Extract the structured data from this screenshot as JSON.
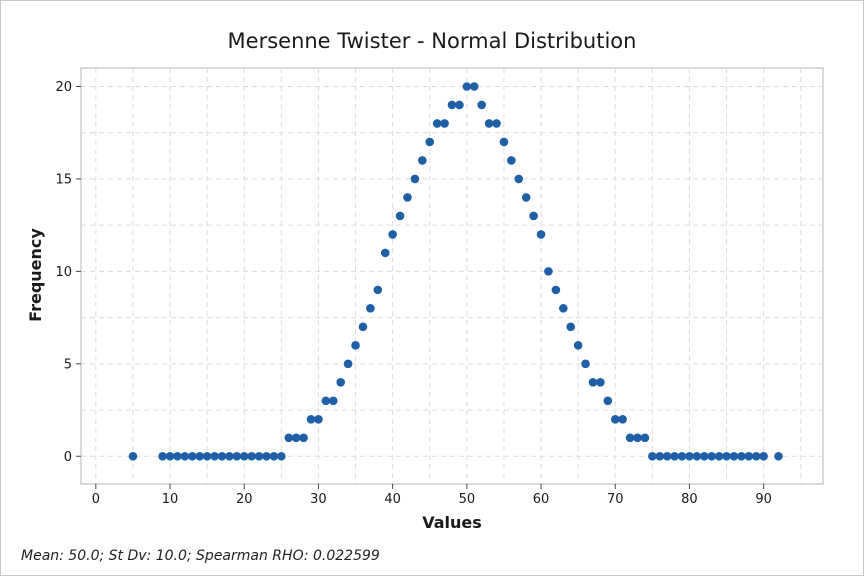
{
  "chart_data": {
    "type": "scatter",
    "title": "Mersenne Twister - Normal Distribution",
    "xlabel": "Values",
    "ylabel": "Frequency",
    "xlim": [
      -2,
      98
    ],
    "ylim": [
      -1.5,
      21
    ],
    "xticks": [
      0,
      10,
      20,
      30,
      40,
      50,
      60,
      70,
      80,
      90
    ],
    "yticks": [
      0,
      5,
      10,
      15,
      20
    ],
    "grid": true,
    "marker_color": "#1f5fa6",
    "points": [
      {
        "x": 5,
        "y": 0
      },
      {
        "x": 9,
        "y": 0
      },
      {
        "x": 10,
        "y": 0
      },
      {
        "x": 11,
        "y": 0
      },
      {
        "x": 12,
        "y": 0
      },
      {
        "x": 13,
        "y": 0
      },
      {
        "x": 14,
        "y": 0
      },
      {
        "x": 15,
        "y": 0
      },
      {
        "x": 16,
        "y": 0
      },
      {
        "x": 17,
        "y": 0
      },
      {
        "x": 18,
        "y": 0
      },
      {
        "x": 19,
        "y": 0
      },
      {
        "x": 20,
        "y": 0
      },
      {
        "x": 21,
        "y": 0
      },
      {
        "x": 22,
        "y": 0
      },
      {
        "x": 23,
        "y": 0
      },
      {
        "x": 24,
        "y": 0
      },
      {
        "x": 25,
        "y": 0
      },
      {
        "x": 26,
        "y": 1
      },
      {
        "x": 27,
        "y": 1
      },
      {
        "x": 28,
        "y": 1
      },
      {
        "x": 29,
        "y": 2
      },
      {
        "x": 30,
        "y": 2
      },
      {
        "x": 31,
        "y": 3
      },
      {
        "x": 32,
        "y": 3
      },
      {
        "x": 33,
        "y": 4
      },
      {
        "x": 34,
        "y": 5
      },
      {
        "x": 35,
        "y": 6
      },
      {
        "x": 36,
        "y": 7
      },
      {
        "x": 37,
        "y": 8
      },
      {
        "x": 38,
        "y": 9
      },
      {
        "x": 39,
        "y": 11
      },
      {
        "x": 40,
        "y": 12
      },
      {
        "x": 41,
        "y": 13
      },
      {
        "x": 42,
        "y": 14
      },
      {
        "x": 43,
        "y": 15
      },
      {
        "x": 44,
        "y": 16
      },
      {
        "x": 45,
        "y": 17
      },
      {
        "x": 46,
        "y": 18
      },
      {
        "x": 47,
        "y": 18
      },
      {
        "x": 48,
        "y": 19
      },
      {
        "x": 49,
        "y": 19
      },
      {
        "x": 50,
        "y": 20
      },
      {
        "x": 51,
        "y": 20
      },
      {
        "x": 52,
        "y": 19
      },
      {
        "x": 53,
        "y": 18
      },
      {
        "x": 54,
        "y": 18
      },
      {
        "x": 55,
        "y": 17
      },
      {
        "x": 56,
        "y": 16
      },
      {
        "x": 57,
        "y": 15
      },
      {
        "x": 58,
        "y": 14
      },
      {
        "x": 59,
        "y": 13
      },
      {
        "x": 60,
        "y": 12
      },
      {
        "x": 61,
        "y": 10
      },
      {
        "x": 62,
        "y": 9
      },
      {
        "x": 63,
        "y": 8
      },
      {
        "x": 64,
        "y": 7
      },
      {
        "x": 65,
        "y": 6
      },
      {
        "x": 66,
        "y": 5
      },
      {
        "x": 67,
        "y": 4
      },
      {
        "x": 68,
        "y": 4
      },
      {
        "x": 69,
        "y": 3
      },
      {
        "x": 70,
        "y": 2
      },
      {
        "x": 71,
        "y": 2
      },
      {
        "x": 72,
        "y": 1
      },
      {
        "x": 73,
        "y": 1
      },
      {
        "x": 74,
        "y": 1
      },
      {
        "x": 75,
        "y": 0
      },
      {
        "x": 76,
        "y": 0
      },
      {
        "x": 77,
        "y": 0
      },
      {
        "x": 78,
        "y": 0
      },
      {
        "x": 79,
        "y": 0
      },
      {
        "x": 80,
        "y": 0
      },
      {
        "x": 81,
        "y": 0
      },
      {
        "x": 82,
        "y": 0
      },
      {
        "x": 83,
        "y": 0
      },
      {
        "x": 84,
        "y": 0
      },
      {
        "x": 85,
        "y": 0
      },
      {
        "x": 86,
        "y": 0
      },
      {
        "x": 87,
        "y": 0
      },
      {
        "x": 88,
        "y": 0
      },
      {
        "x": 89,
        "y": 0
      },
      {
        "x": 90,
        "y": 0
      },
      {
        "x": 92,
        "y": 0
      }
    ]
  },
  "footnote": "Mean: 50.0; St Dv: 10.0; Spearman RHO: 0.022599"
}
